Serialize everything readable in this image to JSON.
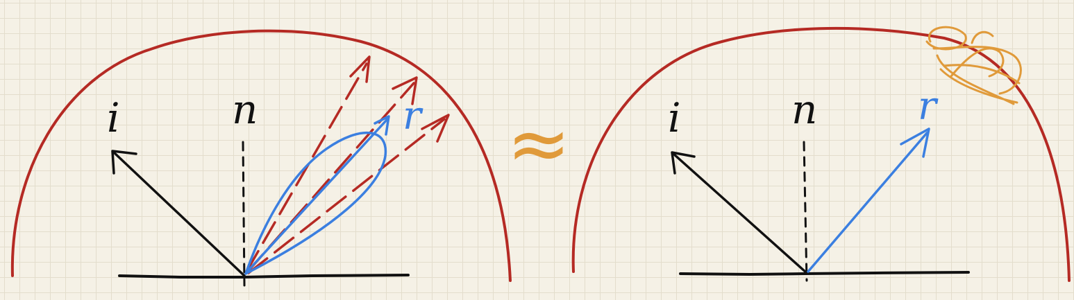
{
  "colors": {
    "paper": "#f5f1e6",
    "grid": "#e3ddcc",
    "hemisphere": "#b52a24",
    "ink": "#111111",
    "blue": "#3b7fe0",
    "orange": "#e09a3a"
  },
  "left_diagram": {
    "incident_label": "i",
    "normal_label": "n",
    "reflect_label": "r"
  },
  "approx_symbol": "≈",
  "right_diagram": {
    "incident_label": "i",
    "normal_label": "n",
    "reflect_label": "r"
  }
}
